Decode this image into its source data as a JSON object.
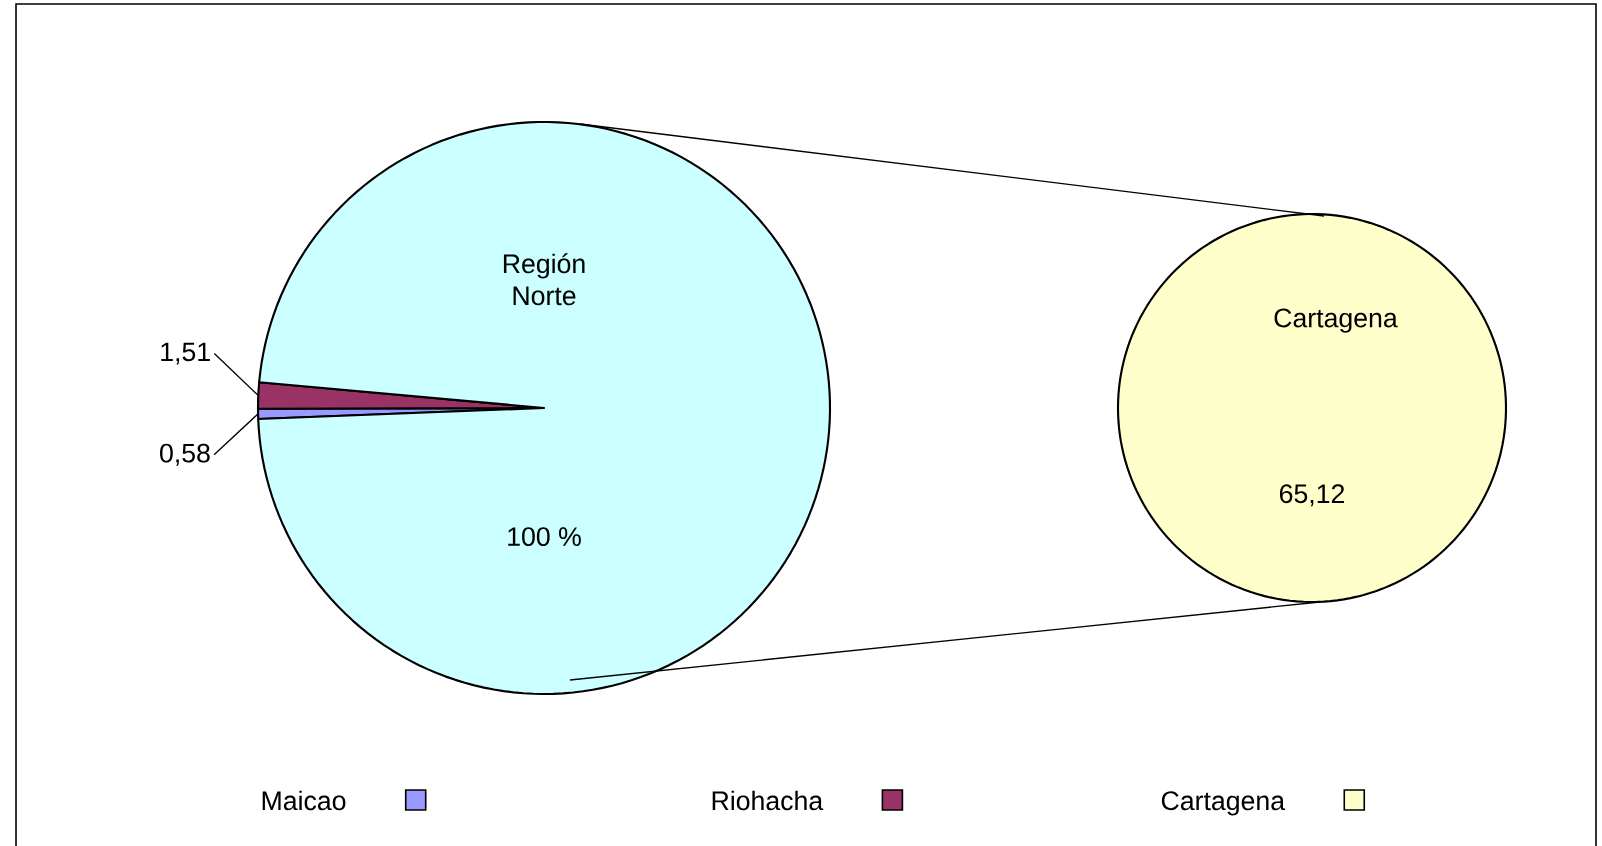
{
  "chart_data": [
    {
      "type": "pie",
      "categories": [
        "Maicao",
        "Riohacha",
        null
      ],
      "values": [
        0.58,
        1.51,
        100
      ],
      "colors": [
        "#9999ff",
        "#993366",
        "#ccffff"
      ],
      "value_labels": [
        "0,58",
        "1,51",
        "100 %"
      ],
      "annotations": [
        "Región Norte"
      ],
      "legend": "bottom"
    },
    {
      "type": "pie",
      "categories": [
        "Cartagena"
      ],
      "values": [
        65.12
      ],
      "colors": [
        "#ffffcc"
      ],
      "value_labels": [
        "65,12"
      ],
      "annotations": [
        "Cartagena"
      ],
      "legend": "bottom"
    }
  ]
}
